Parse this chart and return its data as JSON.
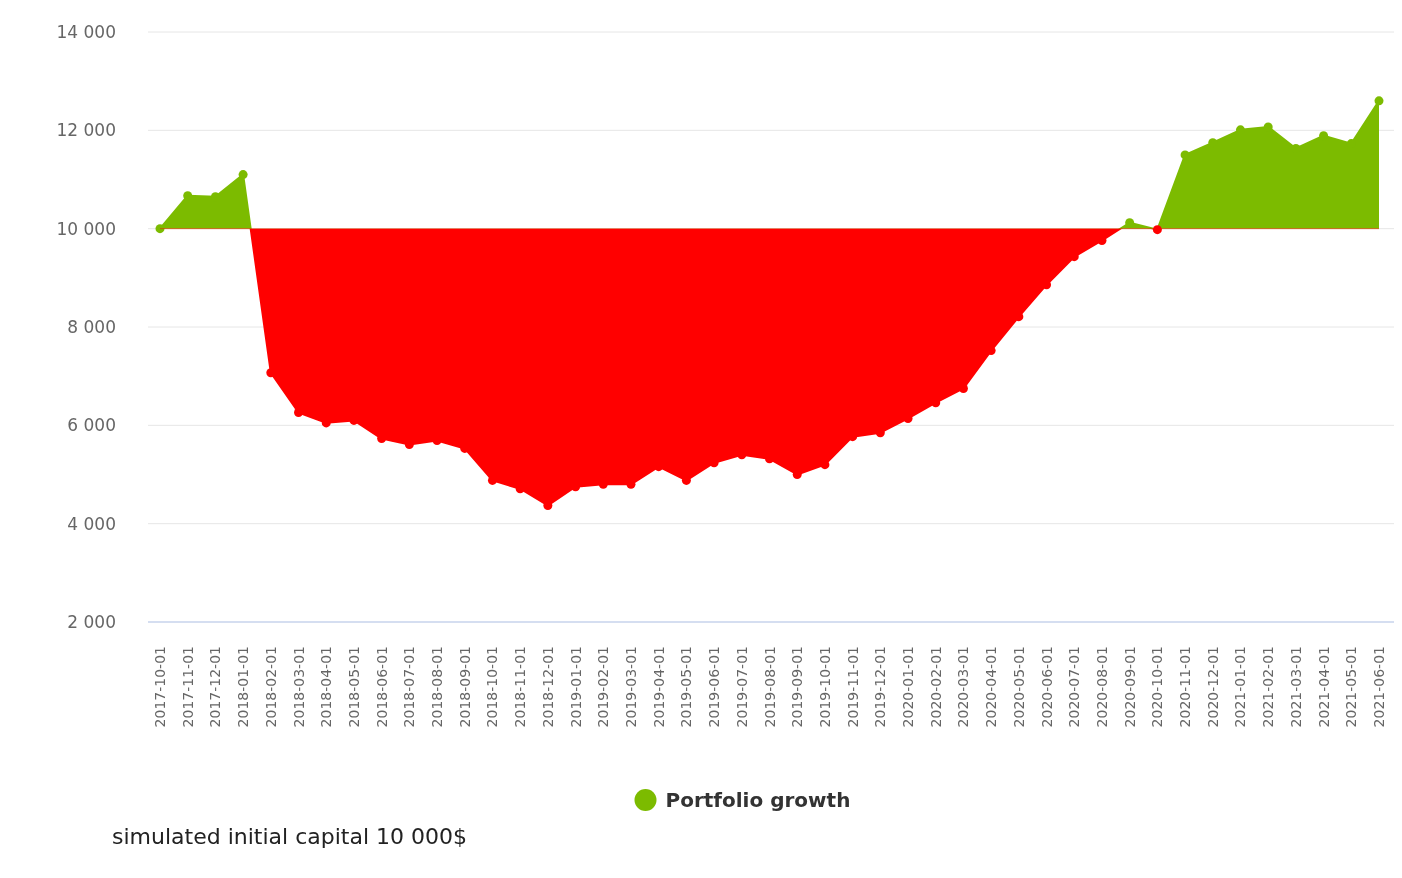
{
  "chart_data": {
    "type": "area",
    "categories": [
      "2017-10-01",
      "2017-11-01",
      "2017-12-01",
      "2018-01-01",
      "2018-02-01",
      "2018-03-01",
      "2018-04-01",
      "2018-05-01",
      "2018-06-01",
      "2018-07-01",
      "2018-08-01",
      "2018-09-01",
      "2018-10-01",
      "2018-11-01",
      "2018-12-01",
      "2019-01-01",
      "2019-02-01",
      "2019-03-01",
      "2019-04-01",
      "2019-05-01",
      "2019-06-01",
      "2019-07-01",
      "2019-08-01",
      "2019-09-01",
      "2019-10-01",
      "2019-11-01",
      "2019-12-01",
      "2020-01-01",
      "2020-02-01",
      "2020-03-01",
      "2020-04-01",
      "2020-05-01",
      "2020-06-01",
      "2020-07-01",
      "2020-08-01",
      "2020-09-01",
      "2020-10-01",
      "2020-11-01",
      "2020-12-01",
      "2021-01-01",
      "2021-02-01",
      "2021-03-01",
      "2021-04-01",
      "2021-05-01",
      "2021-06-01"
    ],
    "series": [
      {
        "name": "Portfolio growth",
        "color": "#7cbb00",
        "values": [
          10000,
          10670,
          10650,
          11100,
          7070,
          6260,
          6050,
          6100,
          5730,
          5610,
          5690,
          5530,
          4880,
          4710,
          4370,
          4750,
          4800,
          4800,
          5160,
          4880,
          5240,
          5400,
          5320,
          5000,
          5200,
          5770,
          5850,
          6140,
          6460,
          6750,
          7520,
          8210,
          8860,
          9430,
          9760,
          10120,
          9980,
          11500,
          11750,
          12010,
          12070,
          11630,
          11890,
          11730,
          12600
        ]
      }
    ],
    "ylim": [
      2000,
      14000
    ],
    "yticks": [
      {
        "value": 2000,
        "label": "2 000"
      },
      {
        "value": 4000,
        "label": "4 000"
      },
      {
        "value": 6000,
        "label": "6 000"
      },
      {
        "value": 8000,
        "label": "8 000"
      },
      {
        "value": 10000,
        "label": "10 000"
      },
      {
        "value": 12000,
        "label": "12 000"
      },
      {
        "value": 14000,
        "label": "14 000"
      }
    ],
    "ref_lines": [
      {
        "axis": "y",
        "value": 10000,
        "color": "#ff0000"
      }
    ],
    "grid": "y",
    "legend": "bottom",
    "marker": "circle",
    "annotations": [
      "simulated initial capital 10 000$"
    ]
  }
}
